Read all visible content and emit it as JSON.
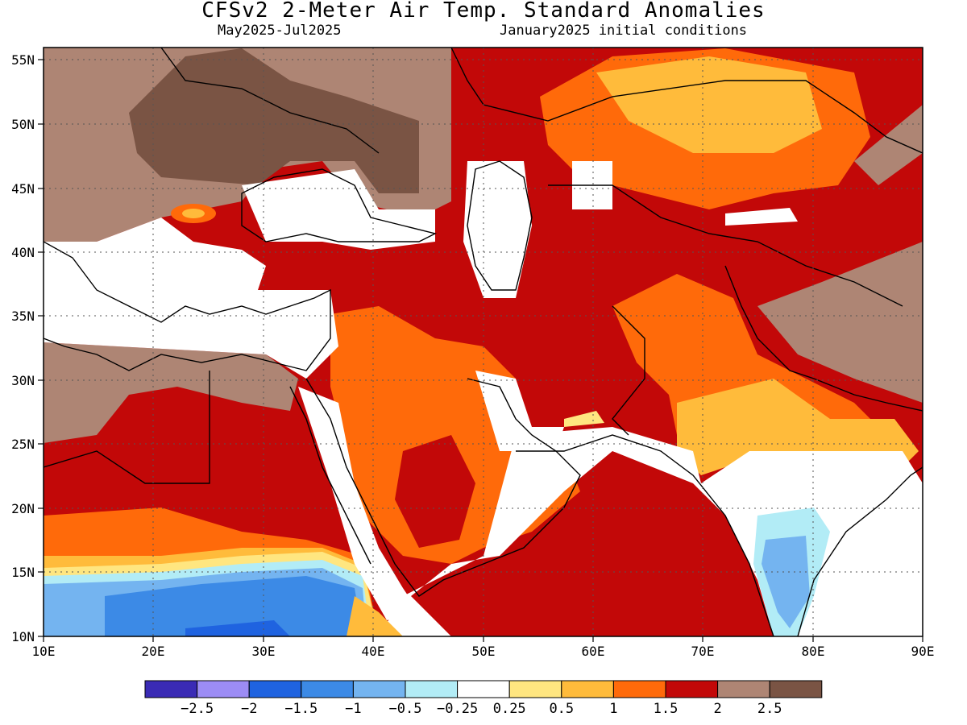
{
  "title": "CFSv2 2-Meter Air Temp. Standard Anomalies",
  "period": "May2025-Jul2025",
  "init": "January2025 initial conditions",
  "lat_labels": [
    "55N",
    "50N",
    "45N",
    "40N",
    "35N",
    "30N",
    "25N",
    "20N",
    "15N",
    "10N"
  ],
  "lon_labels": [
    "10E",
    "20E",
    "30E",
    "40E",
    "50E",
    "60E",
    "70E",
    "80E",
    "90E"
  ],
  "colorbar": {
    "colors": [
      "#3a2bb5",
      "#9c8cf5",
      "#1f63e0",
      "#3c8ae6",
      "#74b4f0",
      "#b2ecf6",
      "#ffffff",
      "#ffe680",
      "#ffbb3b",
      "#ff6a0a",
      "#c20808",
      "#ae8574",
      "#7a5444"
    ],
    "labels": [
      "-2.5",
      "-2",
      "-1.5",
      "-1",
      "-0.5",
      "-0.25",
      "0.25",
      "0.5",
      "1",
      "1.5",
      "2",
      "2.5"
    ]
  }
}
